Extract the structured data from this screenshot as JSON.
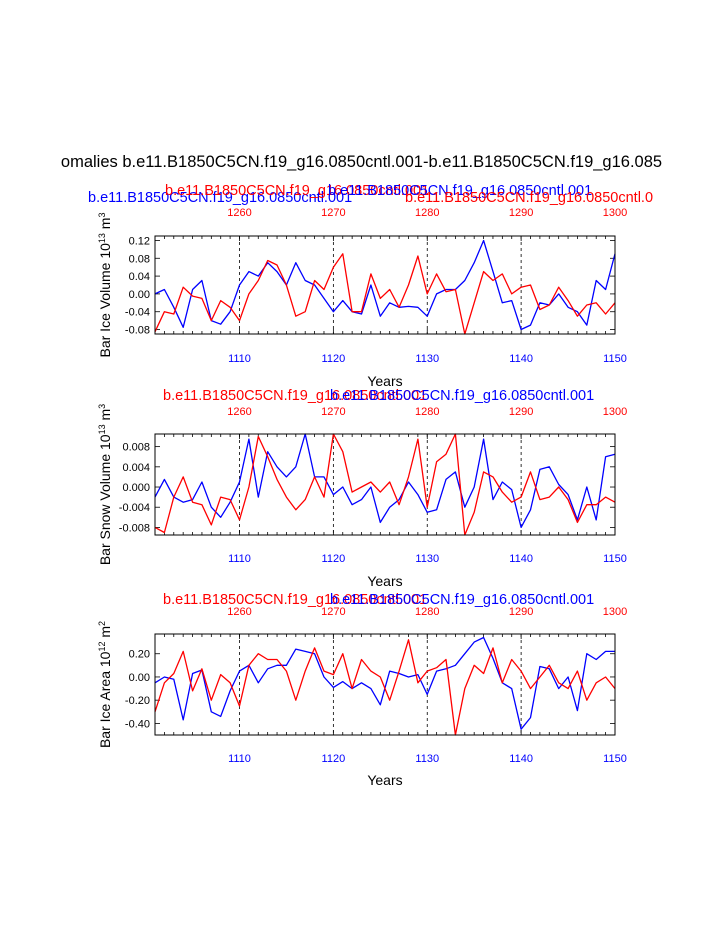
{
  "page": {
    "title": "omalies b.e11.B1850C5CN.f19_g16.0850cntl.001-b.e11.B1850C5CN.f19_g16.085"
  },
  "colors": {
    "blue": "#0000ff",
    "red": "#ff0000",
    "black": "#000000"
  },
  "chart_data": [
    {
      "type": "line",
      "ylabel": "Bar Ice Volume 10^13 m^3",
      "xlabel": "Years",
      "x_bottom": {
        "range": [
          1101,
          1150
        ],
        "ticks": [
          1110,
          1120,
          1130,
          1140,
          1150
        ],
        "tick_labels": [
          "1110",
          "1120",
          "1130",
          "1140",
          "1150"
        ]
      },
      "x_top": {
        "range": [
          1251,
          1300
        ],
        "ticks": [
          1260,
          1270,
          1280,
          1290,
          1300
        ],
        "tick_labels": [
          "1260",
          "1270",
          "1280",
          "1290",
          "1300"
        ]
      },
      "ylim": [
        -0.09,
        0.13
      ],
      "yticks": [
        0.12,
        0.08,
        0.04,
        0.0,
        -0.04,
        -0.08
      ],
      "ytick_labels": [
        "0.12",
        "0.08",
        "0.04",
        "0.00",
        "-0.04",
        "-0.08"
      ],
      "ref_lines_x": [
        1110,
        1120,
        1130,
        1140
      ],
      "header_labels": [
        {
          "text": "b.e11.B1850C5CN.f19_g16.0850cntl.001",
          "color": "blue"
        },
        {
          "text": "b.e11.B1850C5CN.f19_g16.0850cntl.001",
          "color": "red"
        },
        {
          "text": "b.e11.B1850C5CN.f19_g16.0850cntl.001",
          "color": "blue"
        },
        {
          "text": "b.e11.B1850C5CN.f19_g16.0850cntl.0",
          "color": "red"
        }
      ],
      "series": [
        {
          "name": "b.e11.B1850C5CN.f19_g16.0850cntl.001 (years 1101-1150)",
          "color": "blue",
          "axis": "bottom",
          "values": [
            0.0,
            0.01,
            -0.03,
            -0.075,
            0.01,
            0.03,
            -0.06,
            -0.068,
            -0.04,
            0.02,
            0.05,
            0.04,
            0.07,
            0.05,
            0.02,
            0.07,
            0.03,
            0.02,
            -0.01,
            -0.04,
            -0.015,
            -0.04,
            -0.045,
            0.02,
            -0.05,
            -0.02,
            -0.03,
            -0.028,
            -0.03,
            -0.05,
            0.0,
            0.01,
            0.01,
            0.03,
            0.07,
            0.12,
            0.05,
            -0.02,
            -0.015,
            -0.08,
            -0.07,
            -0.02,
            -0.025,
            0.0,
            -0.03,
            -0.04,
            -0.07,
            0.03,
            0.01,
            0.09
          ]
        },
        {
          "name": "b.e11.B1850C5CN.f19_g16.0850cntl.001 (years 1251-1300)",
          "color": "red",
          "axis": "top",
          "values": [
            -0.085,
            -0.04,
            -0.045,
            0.015,
            -0.005,
            -0.01,
            -0.06,
            -0.015,
            -0.03,
            -0.06,
            0.0,
            0.03,
            0.075,
            0.065,
            0.02,
            -0.05,
            -0.04,
            0.03,
            0.01,
            0.06,
            0.09,
            -0.04,
            -0.04,
            0.045,
            -0.01,
            0.01,
            -0.03,
            0.02,
            0.085,
            0.0,
            0.045,
            0.005,
            0.01,
            -0.09,
            -0.02,
            0.05,
            0.03,
            0.045,
            0.0,
            0.015,
            0.02,
            -0.035,
            -0.025,
            0.015,
            -0.015,
            -0.05,
            -0.025,
            -0.02,
            -0.045,
            -0.02
          ]
        }
      ]
    },
    {
      "type": "line",
      "ylabel": "Bar Snow Volume 10^13 m^3",
      "xlabel": "Years",
      "x_bottom": {
        "range": [
          1101,
          1150
        ],
        "ticks": [
          1110,
          1120,
          1130,
          1140,
          1150
        ],
        "tick_labels": [
          "1110",
          "1120",
          "1130",
          "1140",
          "1150"
        ]
      },
      "x_top": {
        "range": [
          1251,
          1300
        ],
        "ticks": [
          1260,
          1270,
          1280,
          1290,
          1300
        ],
        "tick_labels": [
          "1260",
          "1270",
          "1280",
          "1290",
          "1300"
        ]
      },
      "ylim": [
        -0.0095,
        0.0105
      ],
      "yticks": [
        0.008,
        0.004,
        0.0,
        -0.004,
        -0.008
      ],
      "ytick_labels": [
        "0.008",
        "0.004",
        "0.000",
        "-0.004",
        "-0.008"
      ],
      "ref_lines_x": [
        1110,
        1120,
        1130,
        1140
      ],
      "header_labels": [
        {
          "text": "b.e11.B1850C5CN.f19_g16.0850cntl.001",
          "color": "red"
        },
        {
          "text": "b.e11.B1850C5CN.f19_g16.0850cntl.001",
          "color": "blue"
        }
      ],
      "series": [
        {
          "name": "b.e11.B1850C5CN.f19_g16.0850cntl.001 (years 1101-1150)",
          "color": "blue",
          "axis": "bottom",
          "values": [
            -0.002,
            0.0015,
            -0.002,
            -0.003,
            -0.0025,
            0.001,
            -0.004,
            -0.006,
            -0.003,
            0.001,
            0.0095,
            -0.002,
            0.007,
            0.004,
            0.002,
            0.004,
            0.0105,
            0.002,
            0.002,
            -0.0015,
            0.0,
            -0.0035,
            -0.0025,
            0.0,
            -0.007,
            -0.004,
            -0.0025,
            0.001,
            -0.0015,
            -0.005,
            -0.0045,
            0.0015,
            0.003,
            -0.004,
            0.0,
            0.0095,
            -0.0025,
            0.001,
            -0.0005,
            -0.008,
            -0.0045,
            0.0035,
            0.004,
            0.0005,
            -0.0015,
            -0.0065,
            0.0,
            -0.0065,
            0.006,
            0.0065
          ]
        },
        {
          "name": "b.e11.B1850C5CN.f19_g16.0850cntl.001 (years 1251-1300)",
          "color": "red",
          "axis": "top",
          "values": [
            -0.008,
            -0.009,
            -0.002,
            0.002,
            -0.003,
            -0.0035,
            -0.0075,
            -0.002,
            -0.0025,
            -0.0065,
            0.0,
            0.01,
            0.006,
            0.0015,
            -0.002,
            -0.0045,
            -0.0025,
            0.002,
            -0.002,
            0.0105,
            0.007,
            -0.001,
            0.0,
            0.001,
            -0.001,
            0.001,
            -0.0035,
            0.002,
            0.0095,
            -0.004,
            0.005,
            0.0065,
            0.0105,
            -0.0095,
            -0.005,
            0.003,
            0.002,
            -0.001,
            -0.003,
            -0.002,
            0.003,
            -0.0025,
            -0.002,
            0.0,
            -0.0025,
            -0.007,
            -0.0035,
            -0.0035,
            -0.002,
            -0.003
          ]
        }
      ]
    },
    {
      "type": "line",
      "ylabel": "Bar Ice Area 10^12 m^2",
      "xlabel": "Years",
      "x_bottom": {
        "range": [
          1101,
          1150
        ],
        "ticks": [
          1110,
          1120,
          1130,
          1140,
          1150
        ],
        "tick_labels": [
          "1110",
          "1120",
          "1130",
          "1140",
          "1150"
        ]
      },
      "x_top": {
        "range": [
          1251,
          1300
        ],
        "ticks": [
          1260,
          1270,
          1280,
          1290,
          1300
        ],
        "tick_labels": [
          "1260",
          "1270",
          "1280",
          "1290",
          "1300"
        ]
      },
      "ylim": [
        -0.5,
        0.37
      ],
      "yticks": [
        0.2,
        0.0,
        -0.2,
        -0.4
      ],
      "ytick_labels": [
        "0.20",
        "0.00",
        "-0.20",
        "-0.40"
      ],
      "ref_lines_x": [
        1110,
        1120,
        1130,
        1140
      ],
      "header_labels": [
        {
          "text": "b.e11.B1850C5CN.f19_g16.0850cntl.001",
          "color": "red"
        },
        {
          "text": "b.e11.B1850C5CN.f19_g16.0850cntl.001",
          "color": "blue"
        }
      ],
      "series": [
        {
          "name": "b.e11.B1850C5CN.f19_g16.0850cntl.001 (years 1101-1150)",
          "color": "blue",
          "axis": "bottom",
          "values": [
            -0.05,
            0.0,
            -0.02,
            -0.37,
            0.03,
            0.06,
            -0.3,
            -0.34,
            -0.12,
            0.05,
            0.1,
            -0.05,
            0.07,
            0.1,
            0.1,
            0.24,
            0.22,
            0.2,
            0.0,
            -0.09,
            -0.04,
            -0.1,
            -0.05,
            -0.1,
            -0.24,
            0.05,
            0.03,
            0.0,
            0.02,
            -0.15,
            0.05,
            0.07,
            0.1,
            0.2,
            0.3,
            0.34,
            0.16,
            -0.05,
            -0.1,
            -0.45,
            -0.35,
            0.09,
            0.07,
            -0.1,
            0.0,
            -0.29,
            0.2,
            0.15,
            0.22,
            0.22
          ]
        },
        {
          "name": "b.e11.B1850C5CN.f19_g16.0850cntl.001 (years 1251-1300)",
          "color": "red",
          "axis": "top",
          "values": [
            -0.3,
            -0.05,
            0.03,
            0.22,
            -0.12,
            0.07,
            -0.2,
            0.02,
            -0.05,
            -0.25,
            0.1,
            0.2,
            0.15,
            0.15,
            0.05,
            -0.2,
            0.05,
            0.25,
            0.05,
            0.02,
            0.2,
            -0.1,
            0.15,
            0.05,
            0.0,
            -0.2,
            0.05,
            0.32,
            -0.05,
            0.05,
            0.08,
            0.15,
            -0.5,
            -0.1,
            0.1,
            0.03,
            0.25,
            -0.05,
            0.15,
            0.05,
            -0.1,
            0.0,
            0.1,
            -0.05,
            -0.1,
            0.05,
            -0.2,
            -0.05,
            0.0,
            -0.1
          ]
        }
      ]
    }
  ]
}
